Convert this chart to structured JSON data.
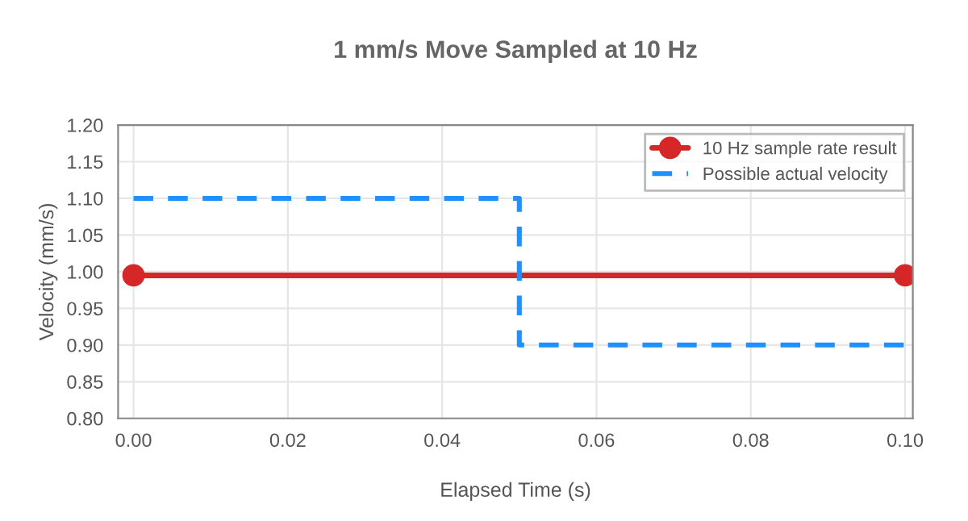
{
  "chart_data": {
    "type": "line",
    "title": "1 mm/s Move Sampled at 10 Hz",
    "xlabel": "Elapsed Time (s)",
    "ylabel": "Velocity (mm/s)",
    "series": [
      {
        "name": "10 Hz sample rate result",
        "color": "#d62728",
        "x": [
          0.0,
          0.1
        ],
        "values": [
          0.995,
          0.995
        ],
        "marker": "circle",
        "line_style": "solid"
      },
      {
        "name": "Possible actual velocity",
        "type": "step",
        "color": "#1e90ff",
        "x": [
          0.0,
          0.05,
          0.1
        ],
        "values": [
          1.1,
          0.9,
          0.9
        ],
        "marker": "none",
        "line_style": "dashed"
      }
    ],
    "xlim": [
      -0.002,
      0.101
    ],
    "ylim": [
      0.8,
      1.2
    ],
    "xticks": [
      {
        "value": 0,
        "label": "0.00"
      },
      0.02,
      0.04,
      0.06,
      0.08,
      {
        "value": 0.1,
        "label": "0.10"
      }
    ],
    "yticks": [
      {
        "value": 0.8,
        "label": "0.80"
      },
      0.85,
      {
        "value": 0.9,
        "label": "0.90"
      },
      0.95,
      {
        "value": 1.0,
        "label": "1.00"
      },
      1.05,
      {
        "value": 1.1,
        "label": "1.10"
      },
      1.15,
      {
        "value": 1.2,
        "label": "1.20"
      }
    ],
    "grid": true,
    "legend": "top right"
  }
}
